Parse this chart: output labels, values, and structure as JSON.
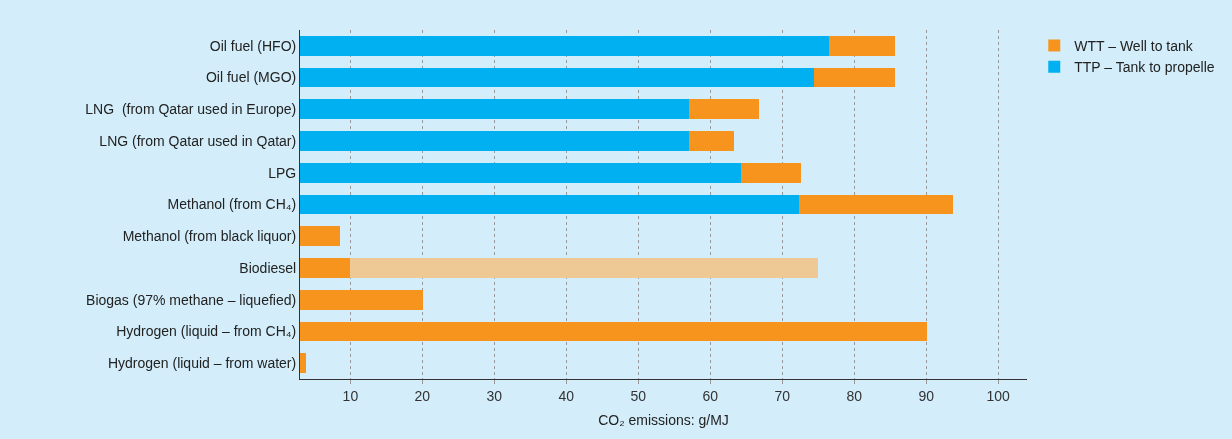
{
  "chart_data": {
    "type": "bar",
    "orientation": "horizontal",
    "stacked": true,
    "xlabel": "CO₂ emissions: g/MJ",
    "categories": [
      "Oil fuel (HFO)",
      "Oil fuel (MGO)",
      "LNG  (from Qatar used in Europe)",
      "LNG (from Qatar used in Qatar)",
      "LPG",
      "Methanol (from CH₄)",
      "Methanol (from black liquor)",
      "Biodiesel",
      "Biogas (97% methane – liquefied)",
      "Hydrogen (liquid – from CH₄)",
      "Hydrogen (liquid – from water)"
    ],
    "series": [
      {
        "name": "TTP – Tank to propelle",
        "color": "#00b0f0",
        "values": [
          76.5,
          74.4,
          57.1,
          57.1,
          64.3,
          72.3,
          null,
          null,
          null,
          null,
          null
        ]
      },
      {
        "name": "WTT – Well to tank",
        "color": "#f7941d",
        "values": [
          9.2,
          11.3,
          9.7,
          6.2,
          8.3,
          21.4,
          8.5,
          10,
          20.1,
          90.1,
          3.8
        ]
      },
      {
        "color": "#efc995",
        "values": [
          null,
          null,
          null,
          null,
          null,
          null,
          null,
          65,
          null,
          null,
          null
        ]
      }
    ],
    "xlim": [
      3,
      104
    ],
    "xticks": [
      10,
      20,
      30,
      40,
      50,
      60,
      70,
      80,
      90,
      100
    ],
    "grid": "x",
    "legend": "top right"
  }
}
